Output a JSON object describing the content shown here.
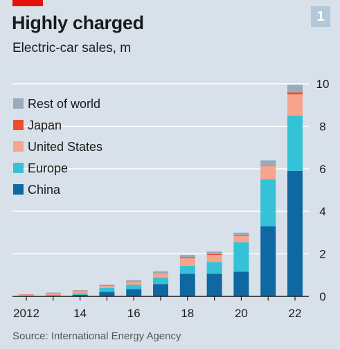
{
  "header": {
    "title": "Highly charged",
    "subtitle": "Electric-car sales, m",
    "badge": "1"
  },
  "footer": {
    "source": "Source: International Energy Agency"
  },
  "colors": {
    "China": "#0f68a2",
    "Europe": "#35c1d6",
    "United States": "#f7a48c",
    "Japan": "#f04d2e",
    "Rest of world": "#9aabbb",
    "background": "#d8e1ea",
    "brand_red": "#e3120b"
  },
  "chart_data": {
    "type": "bar",
    "stacked": true,
    "title": "Highly charged",
    "subtitle": "Electric-car sales, m",
    "xlabel": "",
    "ylabel": "",
    "ylim": [
      0,
      10
    ],
    "y_ticks": [
      0,
      2,
      4,
      6,
      8,
      10
    ],
    "y_axis_side": "right",
    "grid": true,
    "legend_position": "top-left",
    "categories": [
      "2012",
      "13",
      "14",
      "15",
      "16",
      "17",
      "18",
      "19",
      "20",
      "21",
      "22"
    ],
    "x_tick_labels": [
      "2012",
      "14",
      "16",
      "18",
      "20",
      "22"
    ],
    "series": [
      {
        "name": "China",
        "values": [
          0.01,
          0.02,
          0.07,
          0.21,
          0.34,
          0.58,
          1.06,
          1.06,
          1.16,
          3.3,
          5.9
        ]
      },
      {
        "name": "Europe",
        "values": [
          0.02,
          0.04,
          0.07,
          0.19,
          0.21,
          0.31,
          0.38,
          0.56,
          1.38,
          2.2,
          2.6
        ]
      },
      {
        "name": "United States",
        "values": [
          0.05,
          0.1,
          0.12,
          0.11,
          0.16,
          0.2,
          0.36,
          0.33,
          0.3,
          0.63,
          1.0
        ]
      },
      {
        "name": "Japan",
        "values": [
          0.01,
          0.01,
          0.01,
          0.01,
          0.01,
          0.01,
          0.05,
          0.04,
          0.03,
          0.02,
          0.1
        ]
      },
      {
        "name": "Rest of world",
        "values": [
          0.0,
          0.01,
          0.02,
          0.03,
          0.05,
          0.08,
          0.1,
          0.12,
          0.13,
          0.25,
          0.35
        ]
      }
    ],
    "legend_order": [
      "Rest of world",
      "Japan",
      "United States",
      "Europe",
      "China"
    ]
  }
}
